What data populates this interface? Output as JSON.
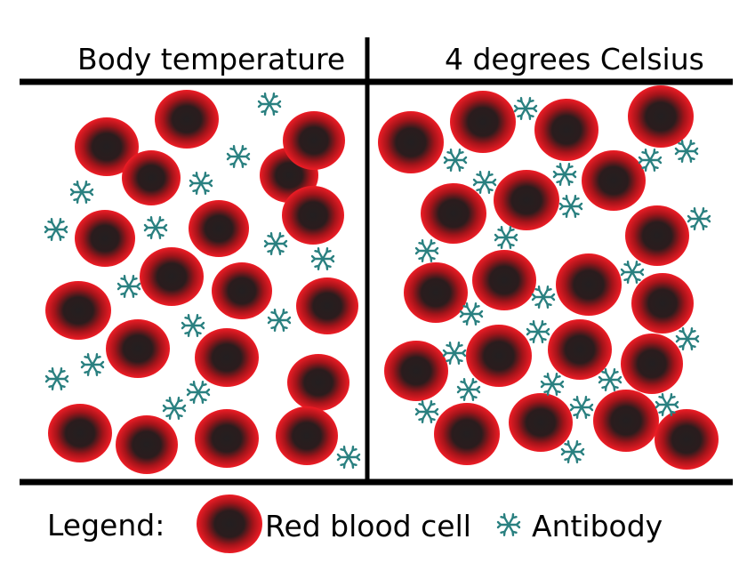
{
  "headers": {
    "left": "Body temperature",
    "right": "4 degrees Celsius"
  },
  "legend": {
    "title": "Legend:",
    "cell_label": "Red blood cell",
    "antibody_label": "Antibody"
  },
  "colors": {
    "cell_outer": "#ee1c25",
    "cell_inner": "#231f20",
    "antibody": "#2a8080",
    "lines": "#000000"
  },
  "icons": {
    "cell": "red-blood-cell-icon",
    "antibody": "antibody-icon"
  }
}
